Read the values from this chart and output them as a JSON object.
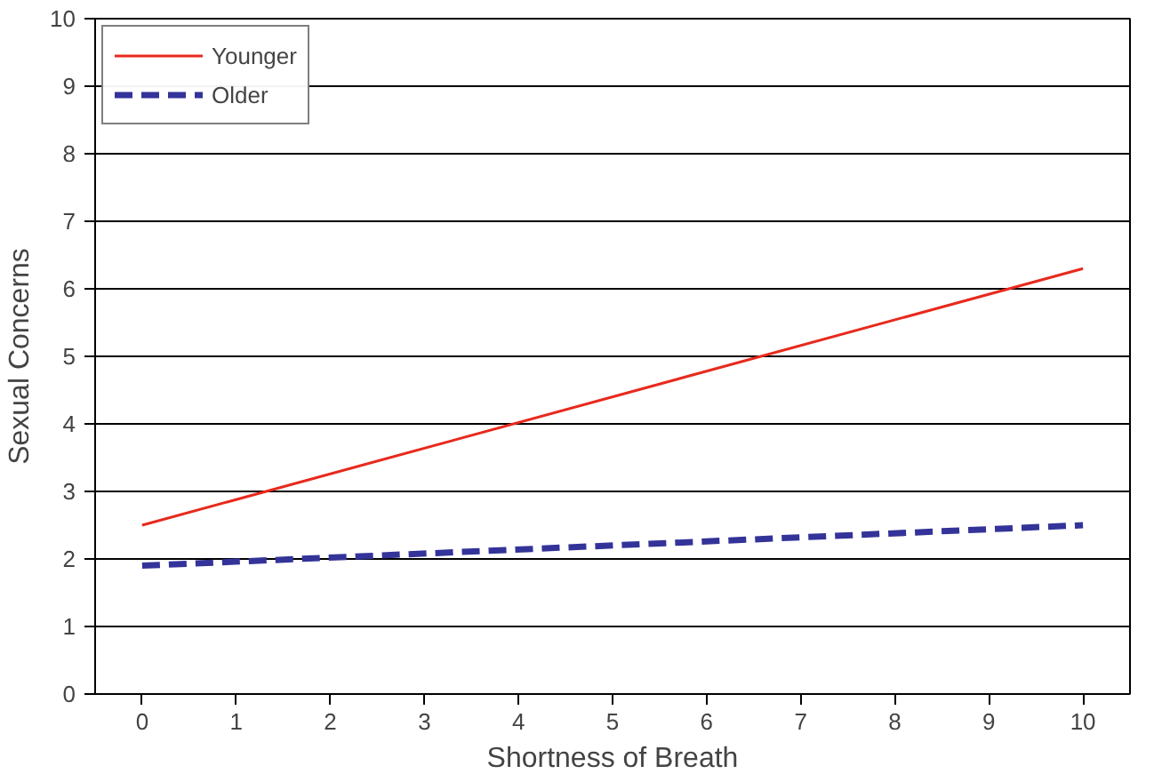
{
  "chart_data": {
    "type": "line",
    "xlabel": "Shortness of Breath",
    "ylabel": "Sexual Concerns",
    "x": [
      0,
      10
    ],
    "series": [
      {
        "name": "Younger",
        "color": "#e8291c",
        "values": [
          2.5,
          6.3
        ],
        "line_style": "solid"
      },
      {
        "name": "Older",
        "color": "#333399",
        "values": [
          1.9,
          2.5
        ],
        "line_style": "dashed"
      }
    ],
    "xlim": [
      -0.5,
      10.5
    ],
    "xticks": [
      0,
      1,
      2,
      3,
      4,
      5,
      6,
      7,
      8,
      9,
      10
    ],
    "ylim": [
      0,
      10
    ],
    "yticks": [
      0,
      1,
      2,
      3,
      4,
      5,
      6,
      7,
      8,
      9,
      10
    ],
    "grid": "y",
    "legend": "top left",
    "marker": "none"
  }
}
